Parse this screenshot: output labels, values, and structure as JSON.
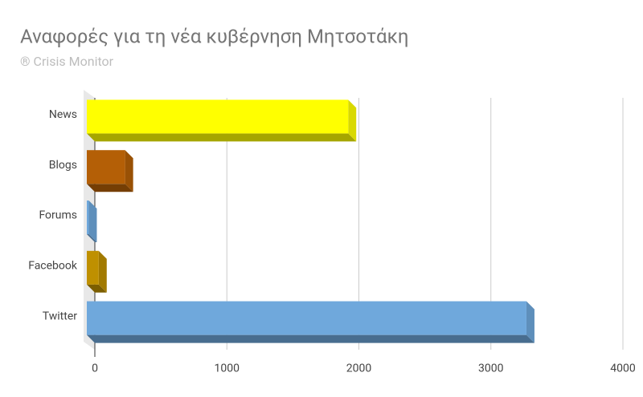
{
  "chart_data": {
    "type": "bar",
    "orientation": "horizontal",
    "title": "Αναφορές για τη νέα κυβέρνηση Μητσοτάκη",
    "subtitle": "® Crisis Monitor",
    "categories": [
      "News",
      "Blogs",
      "Forums",
      "Facebook",
      "Twitter"
    ],
    "values": [
      1980,
      290,
      15,
      90,
      3330
    ],
    "colors": [
      "#ffff00",
      "#b45f06",
      "#6fa8dc",
      "#bf9000",
      "#6fa8dc"
    ],
    "xlim": [
      0,
      4000
    ],
    "xticks": [
      0,
      1000,
      2000,
      3000,
      4000
    ],
    "grid": true
  }
}
